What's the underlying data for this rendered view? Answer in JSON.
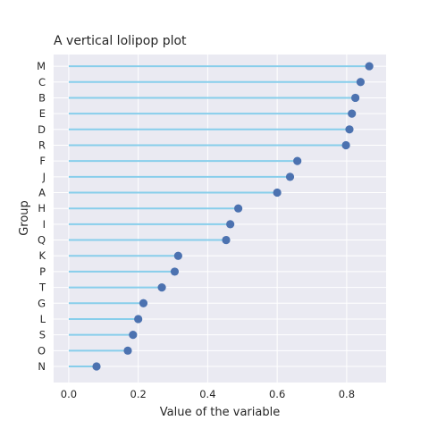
{
  "chart_data": {
    "type": "lollipop",
    "title": "A vertical lolipop plot",
    "xlabel": "Value of the variable",
    "ylabel": "Group",
    "xlim": [
      -0.0435,
      0.9135
    ],
    "xticks": [
      0.0,
      0.2,
      0.4,
      0.6,
      0.8
    ],
    "xtick_labels": [
      "0.0",
      "0.2",
      "0.4",
      "0.6",
      "0.8"
    ],
    "grid": true,
    "orientation": "horizontal",
    "categories": [
      "N",
      "O",
      "S",
      "L",
      "G",
      "T",
      "P",
      "K",
      "Q",
      "I",
      "H",
      "A",
      "J",
      "F",
      "R",
      "D",
      "E",
      "B",
      "C",
      "M"
    ],
    "values": [
      0.08,
      0.17,
      0.185,
      0.2,
      0.215,
      0.268,
      0.305,
      0.315,
      0.453,
      0.465,
      0.488,
      0.6,
      0.637,
      0.658,
      0.798,
      0.808,
      0.815,
      0.825,
      0.84,
      0.865
    ],
    "colors": {
      "stem": "#87ceeb",
      "marker": "#4c72b0",
      "background": "#eaeaf2",
      "grid": "#ffffff"
    }
  }
}
